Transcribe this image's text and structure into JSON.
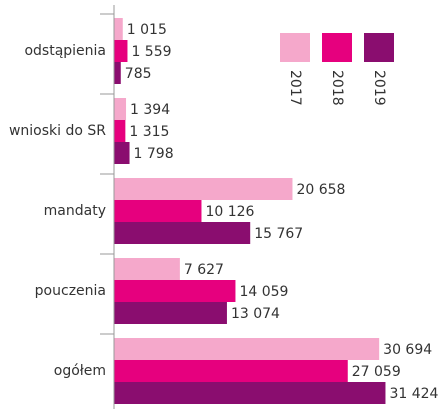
{
  "chart_data": {
    "type": "barh",
    "categories": [
      "odstąpienia",
      "wnioski do SR",
      "mandaty",
      "pouczenia",
      "ogółem"
    ],
    "series": [
      {
        "name": "2017",
        "color": "#f5a8cb",
        "values": [
          1015,
          1394,
          20658,
          7627,
          30694
        ],
        "value_labels": [
          "1 015",
          "1 394",
          "20 658",
          "7 627",
          "30 694"
        ]
      },
      {
        "name": "2018",
        "color": "#e6007e",
        "values": [
          1559,
          1315,
          10126,
          14059,
          27059
        ],
        "value_labels": [
          "1 559",
          "1 315",
          "10 126",
          "14 059",
          "27 059"
        ]
      },
      {
        "name": "2019",
        "color": "#8a0d6f",
        "values": [
          785,
          1798,
          15767,
          13074,
          31424
        ],
        "value_labels": [
          "785",
          "1 798",
          "15 767",
          "13 074",
          "31 424"
        ]
      }
    ],
    "xlim": [
      0,
      36000
    ]
  }
}
